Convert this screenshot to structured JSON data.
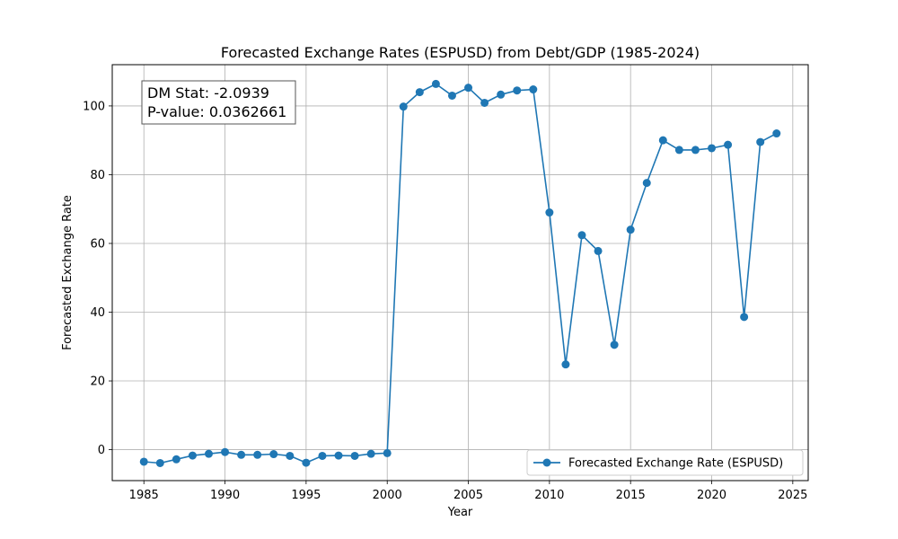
{
  "chart_data": {
    "type": "line",
    "title": "Forecasted Exchange Rates (ESPUSD) from Debt/GDP (1985-2024)",
    "xlabel": "Year",
    "ylabel": "Forecasted Exchange Rate",
    "xlim": [
      1983.05,
      2025.95
    ],
    "ylim": [
      -9,
      112
    ],
    "xticks": [
      1985,
      1990,
      1995,
      2000,
      2005,
      2010,
      2015,
      2020,
      2025
    ],
    "yticks": [
      0,
      20,
      40,
      60,
      80,
      100
    ],
    "grid": true,
    "legend_position": "lower-right",
    "annotation": {
      "line1": "DM Stat: -2.0939",
      "line2": "P-value: 0.0362661"
    },
    "series": [
      {
        "name": "Forecasted Exchange Rate (ESPUSD)",
        "color": "#1f77b4",
        "x": [
          1985,
          1986,
          1987,
          1988,
          1989,
          1990,
          1991,
          1992,
          1993,
          1994,
          1995,
          1996,
          1997,
          1998,
          1999,
          2000,
          2001,
          2002,
          2003,
          2004,
          2005,
          2006,
          2007,
          2008,
          2009,
          2010,
          2011,
          2012,
          2013,
          2014,
          2015,
          2016,
          2017,
          2018,
          2019,
          2020,
          2021,
          2022,
          2023,
          2024
        ],
        "y": [
          -3.5,
          -3.9,
          -2.8,
          -1.7,
          -1.2,
          -0.7,
          -1.5,
          -1.5,
          -1.3,
          -1.8,
          -3.8,
          -1.8,
          -1.7,
          -1.8,
          -1.2,
          -1.0,
          99.8,
          104.0,
          106.4,
          103.0,
          105.3,
          100.9,
          103.3,
          104.5,
          104.8,
          69.0,
          24.8,
          62.4,
          57.8,
          30.5,
          64.0,
          77.6,
          90.0,
          87.2,
          87.2,
          87.7,
          88.7,
          38.6,
          89.5,
          92.0
        ]
      }
    ]
  }
}
